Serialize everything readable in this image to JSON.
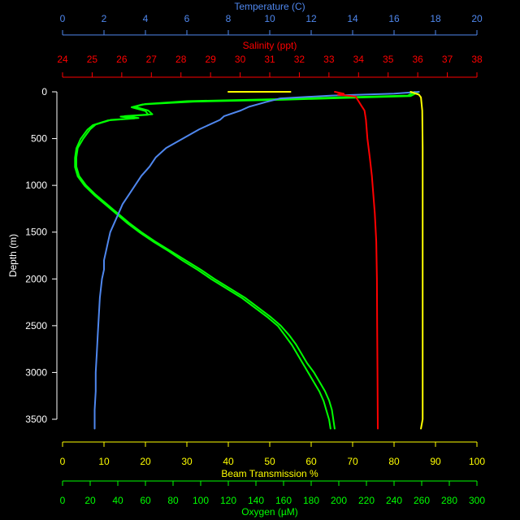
{
  "chart_data": {
    "type": "line",
    "title": "",
    "y_axis": {
      "label": "Depth (m)",
      "range": [
        0,
        3600
      ],
      "ticks": [
        0,
        500,
        1000,
        1500,
        2000,
        2500,
        3000,
        3500
      ],
      "inverted": true,
      "color": "#ffffff"
    },
    "x_axes": [
      {
        "id": "temperature",
        "label": "Temperature (C)",
        "position": "top",
        "color": "#4f87ee",
        "range": [
          0,
          20
        ],
        "ticks": [
          0,
          2,
          4,
          6,
          8,
          10,
          12,
          14,
          16,
          18,
          20
        ]
      },
      {
        "id": "salinity",
        "label": "Salinity (ppt)",
        "position": "top",
        "color": "#ff0000",
        "range": [
          24,
          38
        ],
        "ticks": [
          24,
          25,
          26,
          27,
          28,
          29,
          30,
          31,
          32,
          33,
          34,
          35,
          36,
          37,
          38
        ]
      },
      {
        "id": "beam",
        "label": "Beam Transmission %",
        "position": "bottom",
        "color": "#ffff00",
        "range": [
          0,
          100
        ],
        "ticks": [
          0,
          10,
          20,
          30,
          40,
          50,
          60,
          70,
          80,
          90,
          100
        ]
      },
      {
        "id": "oxygen",
        "label": "Oxygen (µM)",
        "position": "bottom",
        "color": "#00ff00",
        "range": [
          0,
          300
        ],
        "ticks": [
          0,
          20,
          40,
          60,
          80,
          100,
          120,
          140,
          160,
          180,
          200,
          220,
          240,
          260,
          280,
          300
        ]
      }
    ],
    "series": [
      {
        "axis": "oxygen",
        "color": "#00ff00",
        "points": [
          [
            255,
            0
          ],
          [
            250,
            40
          ],
          [
            200,
            60
          ],
          [
            150,
            80
          ],
          [
            90,
            100
          ],
          [
            60,
            130
          ],
          [
            52,
            160
          ],
          [
            62,
            200
          ],
          [
            65,
            240
          ],
          [
            45,
            260
          ],
          [
            55,
            280
          ],
          [
            35,
            300
          ],
          [
            24,
            350
          ],
          [
            20,
            400
          ],
          [
            15,
            500
          ],
          [
            11,
            600
          ],
          [
            10,
            700
          ],
          [
            10,
            800
          ],
          [
            12,
            900
          ],
          [
            17,
            1000
          ],
          [
            24,
            1100
          ],
          [
            32,
            1200
          ],
          [
            40,
            1300
          ],
          [
            48,
            1400
          ],
          [
            57,
            1500
          ],
          [
            67,
            1600
          ],
          [
            78,
            1700
          ],
          [
            89,
            1800
          ],
          [
            100,
            1900
          ],
          [
            110,
            2000
          ],
          [
            121,
            2100
          ],
          [
            132,
            2200
          ],
          [
            141,
            2300
          ],
          [
            150,
            2400
          ],
          [
            158,
            2500
          ],
          [
            164,
            2600
          ],
          [
            169,
            2700
          ],
          [
            173,
            2800
          ],
          [
            177,
            2900
          ],
          [
            182,
            3000
          ],
          [
            186,
            3100
          ],
          [
            190,
            3200
          ],
          [
            193,
            3300
          ],
          [
            195,
            3400
          ],
          [
            196,
            3500
          ],
          [
            197,
            3600
          ]
        ]
      },
      {
        "axis": "oxygen",
        "color": "#00ff00",
        "points": [
          [
            258,
            0
          ],
          [
            252,
            45
          ],
          [
            205,
            65
          ],
          [
            160,
            85
          ],
          [
            95,
            105
          ],
          [
            58,
            135
          ],
          [
            50,
            165
          ],
          [
            60,
            205
          ],
          [
            62,
            245
          ],
          [
            42,
            265
          ],
          [
            52,
            285
          ],
          [
            33,
            305
          ],
          [
            22,
            355
          ],
          [
            18,
            405
          ],
          [
            13,
            505
          ],
          [
            10,
            605
          ],
          [
            9,
            705
          ],
          [
            9,
            805
          ],
          [
            11,
            905
          ],
          [
            16,
            1005
          ],
          [
            23,
            1105
          ],
          [
            31,
            1205
          ],
          [
            39,
            1305
          ],
          [
            47,
            1405
          ],
          [
            56,
            1505
          ],
          [
            66,
            1605
          ],
          [
            77,
            1705
          ],
          [
            87,
            1805
          ],
          [
            98,
            1905
          ],
          [
            108,
            2005
          ],
          [
            119,
            2105
          ],
          [
            130,
            2205
          ],
          [
            139,
            2305
          ],
          [
            148,
            2405
          ],
          [
            156,
            2505
          ],
          [
            161,
            2605
          ],
          [
            166,
            2705
          ],
          [
            170,
            2805
          ],
          [
            174,
            2905
          ],
          [
            178,
            3005
          ],
          [
            182,
            3105
          ],
          [
            186,
            3205
          ],
          [
            189,
            3305
          ],
          [
            191,
            3405
          ],
          [
            193,
            3505
          ],
          [
            194,
            3600
          ]
        ]
      },
      {
        "axis": "temperature",
        "color": "#4f87ee",
        "points": [
          [
            17.2,
            0
          ],
          [
            16.0,
            20
          ],
          [
            13.0,
            40
          ],
          [
            10.5,
            70
          ],
          [
            9.8,
            110
          ],
          [
            9.0,
            160
          ],
          [
            8.6,
            200
          ],
          [
            7.8,
            260
          ],
          [
            7.6,
            300
          ],
          [
            6.6,
            400
          ],
          [
            5.8,
            500
          ],
          [
            5.0,
            600
          ],
          [
            4.5,
            700
          ],
          [
            4.2,
            800
          ],
          [
            3.8,
            900
          ],
          [
            3.5,
            1000
          ],
          [
            3.2,
            1100
          ],
          [
            2.9,
            1200
          ],
          [
            2.7,
            1300
          ],
          [
            2.5,
            1400
          ],
          [
            2.3,
            1500
          ],
          [
            2.2,
            1600
          ],
          [
            2.1,
            1700
          ],
          [
            2.0,
            1800
          ],
          [
            2.0,
            1900
          ],
          [
            1.9,
            2000
          ],
          [
            1.8,
            2200
          ],
          [
            1.75,
            2400
          ],
          [
            1.7,
            2600
          ],
          [
            1.65,
            2800
          ],
          [
            1.6,
            3000
          ],
          [
            1.6,
            3200
          ],
          [
            1.55,
            3400
          ],
          [
            1.55,
            3600
          ]
        ]
      },
      {
        "axis": "salinity",
        "color": "#ff0000",
        "points": [
          [
            33.2,
            0
          ],
          [
            33.5,
            20
          ],
          [
            33.3,
            30
          ],
          [
            33.9,
            50
          ],
          [
            34.0,
            100
          ],
          [
            34.1,
            150
          ],
          [
            34.2,
            200
          ],
          [
            34.25,
            300
          ],
          [
            34.3,
            500
          ],
          [
            34.38,
            700
          ],
          [
            34.45,
            900
          ],
          [
            34.5,
            1100
          ],
          [
            34.55,
            1300
          ],
          [
            34.6,
            1600
          ],
          [
            34.62,
            2000
          ],
          [
            34.63,
            2500
          ],
          [
            34.64,
            3000
          ],
          [
            34.65,
            3600
          ]
        ]
      },
      {
        "axis": "beam",
        "color": "#ffff00",
        "points": [
          [
            84,
            0
          ],
          [
            86,
            30
          ],
          [
            86.5,
            60
          ],
          [
            86.8,
            200
          ],
          [
            86.9,
            600
          ],
          [
            86.9,
            1000
          ],
          [
            86.9,
            2000
          ],
          [
            86.9,
            3000
          ],
          [
            86.9,
            3500
          ],
          [
            86.5,
            3600
          ]
        ]
      },
      {
        "axis": "beam",
        "color": "#ffff00",
        "points": [
          [
            40,
            0
          ],
          [
            55,
            0
          ]
        ]
      }
    ]
  }
}
